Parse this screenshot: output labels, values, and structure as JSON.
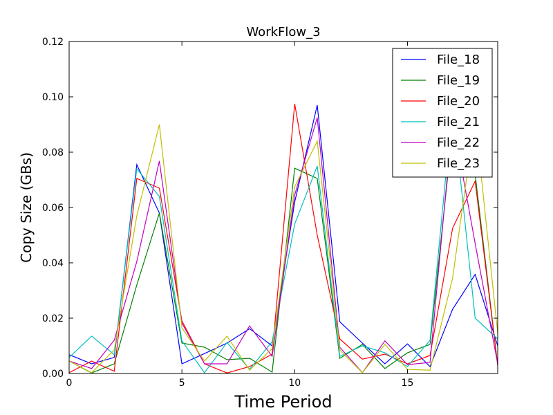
{
  "chart_data": {
    "type": "line",
    "title": "WorkFlow_3",
    "xlabel": "Time Period",
    "ylabel": "Copy Size (GBs)",
    "xlim": [
      0,
      19
    ],
    "ylim": [
      0,
      0.12
    ],
    "xticks": [
      0,
      5,
      10,
      15
    ],
    "yticks": [
      0.0,
      0.02,
      0.04,
      0.06,
      0.08,
      0.1,
      0.12
    ],
    "ytick_labels": [
      "0.00",
      "0.02",
      "0.04",
      "0.06",
      "0.08",
      "0.10",
      "0.12"
    ],
    "xtick_labels": [
      "0",
      "5",
      "10",
      "15"
    ],
    "grid": false,
    "legend_position": "top-right",
    "x": [
      0,
      1,
      2,
      3,
      4,
      5,
      6,
      7,
      8,
      9,
      10,
      11,
      12,
      13,
      14,
      15,
      16,
      17,
      18,
      19
    ],
    "series": [
      {
        "name": "File_18",
        "color": "#0000ff",
        "values": [
          0.0068,
          0.0035,
          0.0058,
          0.0755,
          0.058,
          0.0035,
          0.0072,
          0.011,
          0.0162,
          0.01,
          0.062,
          0.097,
          0.0187,
          0.011,
          0.0035,
          0.0107,
          0.0025,
          0.0232,
          0.0358,
          0.01
        ]
      },
      {
        "name": "File_19",
        "color": "#008000",
        "values": [
          0.0045,
          0.0002,
          0.0035,
          0.032,
          0.058,
          0.011,
          0.0095,
          0.005,
          0.0055,
          0.0005,
          0.0742,
          0.0705,
          0.0055,
          0.0105,
          0.0018,
          0.0075,
          0.0105,
          0.088,
          0.072,
          0.003
        ]
      },
      {
        "name": "File_20",
        "color": "#ff0000",
        "values": [
          0.0003,
          0.0045,
          0.0008,
          0.0705,
          0.067,
          0.019,
          0.0035,
          0.0002,
          0.0025,
          0.007,
          0.0975,
          0.05,
          0.0125,
          0.0052,
          0.007,
          0.0035,
          0.0065,
          0.0525,
          0.0695,
          0.003
        ]
      },
      {
        "name": "File_21",
        "color": "#00bfbf",
        "values": [
          0.0058,
          0.0135,
          0.0068,
          0.074,
          0.064,
          0.0118,
          0.0003,
          0.0112,
          0.0015,
          0.0115,
          0.054,
          0.075,
          0.0062,
          0.01,
          0.0075,
          0.0025,
          0.012,
          0.097,
          0.02,
          0.0125
        ]
      },
      {
        "name": "File_22",
        "color": "#bf00bf",
        "values": [
          0.0045,
          0.0018,
          0.012,
          0.0405,
          0.0768,
          0.0182,
          0.0035,
          0.0035,
          0.0172,
          0.0062,
          0.0645,
          0.0925,
          0.0095,
          0.0003,
          0.0118,
          0.0032,
          0.004,
          0.092,
          0.047,
          0.0035
        ]
      },
      {
        "name": "File_23",
        "color": "#bfbf00",
        "values": [
          0.0045,
          0.0003,
          0.0085,
          0.057,
          0.09,
          0.0165,
          0.0045,
          0.0135,
          0.0012,
          0.009,
          0.0675,
          0.084,
          0.0085,
          0.0003,
          0.0105,
          0.0015,
          0.0012,
          0.0345,
          0.0925,
          0.0145
        ]
      }
    ]
  }
}
